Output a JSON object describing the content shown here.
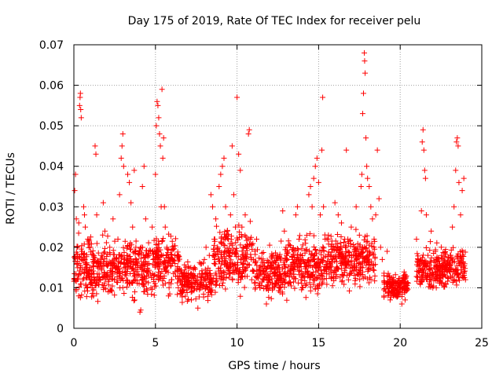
{
  "chart_data": {
    "type": "scatter",
    "title": "Day 175 of 2019, Rate Of TEC Index for receiver pelu",
    "xlabel": "GPS time / hours",
    "ylabel": "ROTI / TECUs",
    "xlim": [
      0,
      25
    ],
    "ylim": [
      0,
      0.07
    ],
    "x_ticks": [
      0,
      5,
      10,
      15,
      20,
      25
    ],
    "x_tick_labels": [
      "0",
      "5",
      "10",
      "15",
      "20",
      "25"
    ],
    "y_ticks": [
      0,
      0.01,
      0.02,
      0.03,
      0.04,
      0.05,
      0.06,
      0.07
    ],
    "y_tick_labels": [
      "0",
      "0.01",
      "0.02",
      "0.03",
      "0.04",
      "0.05",
      "0.06",
      "0.07"
    ],
    "grid": true,
    "marker": "+",
    "color": "#ff0000",
    "series": [
      {
        "name": "ROTI",
        "points": [
          [
            0.05,
            0.034
          ],
          [
            0.1,
            0.038
          ],
          [
            0.15,
            0.027
          ],
          [
            0.2,
            0.02
          ],
          [
            0.25,
            0.013
          ],
          [
            0.3,
            0.008
          ],
          [
            0.3,
            0.026
          ],
          [
            0.35,
            0.055
          ],
          [
            0.38,
            0.057
          ],
          [
            0.4,
            0.058
          ],
          [
            0.42,
            0.054
          ],
          [
            0.45,
            0.052
          ],
          [
            0.5,
            0.019
          ],
          [
            0.55,
            0.012
          ],
          [
            0.6,
            0.03
          ],
          [
            0.65,
            0.028
          ],
          [
            0.7,
            0.025
          ],
          [
            0.75,
            0.015
          ],
          [
            0.8,
            0.01
          ],
          [
            0.85,
            0.022
          ],
          [
            0.9,
            0.014
          ],
          [
            1.0,
            0.02
          ],
          [
            1.1,
            0.011
          ],
          [
            1.2,
            0.008
          ],
          [
            1.3,
            0.045
          ],
          [
            1.35,
            0.043
          ],
          [
            1.4,
            0.028
          ],
          [
            1.5,
            0.016
          ],
          [
            1.6,
            0.012
          ],
          [
            1.7,
            0.018
          ],
          [
            1.8,
            0.031
          ],
          [
            1.9,
            0.024
          ],
          [
            2.0,
            0.013
          ],
          [
            2.1,
            0.009
          ],
          [
            2.2,
            0.02
          ],
          [
            2.3,
            0.016
          ],
          [
            2.4,
            0.027
          ],
          [
            2.5,
            0.012
          ],
          [
            2.6,
            0.015
          ],
          [
            2.7,
            0.022
          ],
          [
            2.8,
            0.033
          ],
          [
            2.9,
            0.042
          ],
          [
            2.95,
            0.045
          ],
          [
            3.0,
            0.048
          ],
          [
            3.05,
            0.04
          ],
          [
            3.1,
            0.017
          ],
          [
            3.2,
            0.013
          ],
          [
            3.3,
            0.038
          ],
          [
            3.4,
            0.036
          ],
          [
            3.5,
            0.031
          ],
          [
            3.6,
            0.025
          ],
          [
            3.7,
            0.039
          ],
          [
            3.8,
            0.02
          ],
          [
            3.9,
            0.014
          ],
          [
            4.0,
            0.011
          ],
          [
            4.05,
            0.004
          ],
          [
            4.1,
            0.0045
          ],
          [
            4.2,
            0.035
          ],
          [
            4.3,
            0.04
          ],
          [
            4.4,
            0.027
          ],
          [
            4.5,
            0.018
          ],
          [
            4.6,
            0.016
          ],
          [
            4.7,
            0.019
          ],
          [
            4.8,
            0.025
          ],
          [
            4.9,
            0.013
          ],
          [
            5.0,
            0.038
          ],
          [
            5.05,
            0.05
          ],
          [
            5.1,
            0.056
          ],
          [
            5.15,
            0.055
          ],
          [
            5.2,
            0.052
          ],
          [
            5.25,
            0.048
          ],
          [
            5.3,
            0.045
          ],
          [
            5.35,
            0.03
          ],
          [
            5.4,
            0.059
          ],
          [
            5.45,
            0.042
          ],
          [
            5.5,
            0.047
          ],
          [
            5.55,
            0.03
          ],
          [
            5.6,
            0.025
          ],
          [
            5.7,
            0.02
          ],
          [
            5.8,
            0.008
          ],
          [
            6.0,
            0.012
          ],
          [
            6.2,
            0.016
          ],
          [
            6.4,
            0.01
          ],
          [
            6.6,
            0.009
          ],
          [
            6.8,
            0.013
          ],
          [
            7.0,
            0.011
          ],
          [
            7.2,
            0.007
          ],
          [
            7.4,
            0.015
          ],
          [
            7.6,
            0.005
          ],
          [
            7.8,
            0.012
          ],
          [
            8.0,
            0.017
          ],
          [
            8.1,
            0.02
          ],
          [
            8.2,
            0.013
          ],
          [
            8.3,
            0.018
          ],
          [
            8.4,
            0.033
          ],
          [
            8.5,
            0.03
          ],
          [
            8.6,
            0.022
          ],
          [
            8.7,
            0.027
          ],
          [
            8.8,
            0.019
          ],
          [
            8.9,
            0.035
          ],
          [
            9.0,
            0.038
          ],
          [
            9.1,
            0.04
          ],
          [
            9.2,
            0.042
          ],
          [
            9.3,
            0.03
          ],
          [
            9.4,
            0.024
          ],
          [
            9.5,
            0.018
          ],
          [
            9.6,
            0.028
          ],
          [
            9.7,
            0.045
          ],
          [
            9.8,
            0.033
          ],
          [
            9.9,
            0.025
          ],
          [
            10.0,
            0.057
          ],
          [
            10.1,
            0.043
          ],
          [
            10.2,
            0.039
          ],
          [
            10.3,
            0.025
          ],
          [
            10.4,
            0.02
          ],
          [
            10.5,
            0.028
          ],
          [
            10.6,
            0.015
          ],
          [
            10.7,
            0.048
          ],
          [
            10.75,
            0.049
          ],
          [
            10.8,
            0.022
          ],
          [
            10.9,
            0.012
          ],
          [
            11.0,
            0.017
          ],
          [
            11.2,
            0.022
          ],
          [
            11.4,
            0.01
          ],
          [
            11.6,
            0.014
          ],
          [
            11.8,
            0.006
          ],
          [
            12.0,
            0.012
          ],
          [
            12.2,
            0.018
          ],
          [
            12.4,
            0.011
          ],
          [
            12.6,
            0.015
          ],
          [
            12.8,
            0.029
          ],
          [
            12.9,
            0.024
          ],
          [
            13.0,
            0.02
          ],
          [
            13.2,
            0.013
          ],
          [
            13.4,
            0.017
          ],
          [
            13.6,
            0.028
          ],
          [
            13.7,
            0.03
          ],
          [
            13.8,
            0.022
          ],
          [
            13.9,
            0.016
          ],
          [
            14.0,
            0.01
          ],
          [
            14.2,
            0.021
          ],
          [
            14.4,
            0.033
          ],
          [
            14.5,
            0.035
          ],
          [
            14.6,
            0.03
          ],
          [
            14.7,
            0.037
          ],
          [
            14.8,
            0.04
          ],
          [
            14.9,
            0.042
          ],
          [
            15.0,
            0.036
          ],
          [
            15.1,
            0.028
          ],
          [
            15.2,
            0.044
          ],
          [
            15.25,
            0.057
          ],
          [
            15.3,
            0.03
          ],
          [
            15.4,
            0.022
          ],
          [
            15.5,
            0.015
          ],
          [
            15.6,
            0.023
          ],
          [
            15.8,
            0.017
          ],
          [
            16.0,
            0.031
          ],
          [
            16.2,
            0.028
          ],
          [
            16.4,
            0.026
          ],
          [
            16.6,
            0.022
          ],
          [
            16.7,
            0.044
          ],
          [
            16.8,
            0.019
          ],
          [
            17.0,
            0.025
          ],
          [
            17.1,
            0.015
          ],
          [
            17.2,
            0.02
          ],
          [
            17.3,
            0.03
          ],
          [
            17.4,
            0.018
          ],
          [
            17.5,
            0.023
          ],
          [
            17.6,
            0.035
          ],
          [
            17.65,
            0.038
          ],
          [
            17.7,
            0.053
          ],
          [
            17.75,
            0.058
          ],
          [
            17.8,
            0.068
          ],
          [
            17.82,
            0.066
          ],
          [
            17.85,
            0.063
          ],
          [
            17.9,
            0.047
          ],
          [
            17.95,
            0.04
          ],
          [
            18.0,
            0.037
          ],
          [
            18.1,
            0.035
          ],
          [
            18.2,
            0.03
          ],
          [
            18.3,
            0.027
          ],
          [
            18.4,
            0.022
          ],
          [
            18.5,
            0.028
          ],
          [
            18.6,
            0.044
          ],
          [
            18.7,
            0.032
          ],
          [
            18.8,
            0.02
          ],
          [
            18.9,
            0.017
          ],
          [
            19.0,
            0.013
          ],
          [
            19.2,
            0.019
          ],
          [
            19.4,
            0.012
          ],
          [
            19.6,
            0.008
          ],
          [
            19.8,
            0.011
          ],
          [
            20.0,
            0.009
          ],
          [
            20.1,
            0.006
          ],
          [
            20.2,
            0.013
          ],
          [
            20.3,
            0.007
          ],
          [
            20.4,
            0.01
          ],
          [
            21.0,
            0.022
          ],
          [
            21.1,
            0.017
          ],
          [
            21.2,
            0.012
          ],
          [
            21.3,
            0.029
          ],
          [
            21.35,
            0.046
          ],
          [
            21.4,
            0.049
          ],
          [
            21.45,
            0.044
          ],
          [
            21.5,
            0.039
          ],
          [
            21.55,
            0.037
          ],
          [
            21.6,
            0.028
          ],
          [
            21.7,
            0.018
          ],
          [
            21.8,
            0.013
          ],
          [
            21.9,
            0.024
          ],
          [
            22.0,
            0.01
          ],
          [
            22.2,
            0.017
          ],
          [
            22.4,
            0.012
          ],
          [
            22.6,
            0.014
          ],
          [
            22.8,
            0.011
          ],
          [
            23.0,
            0.015
          ],
          [
            23.1,
            0.018
          ],
          [
            23.2,
            0.025
          ],
          [
            23.3,
            0.03
          ],
          [
            23.4,
            0.039
          ],
          [
            23.45,
            0.046
          ],
          [
            23.5,
            0.047
          ],
          [
            23.55,
            0.045
          ],
          [
            23.6,
            0.036
          ],
          [
            23.7,
            0.028
          ],
          [
            23.8,
            0.034
          ],
          [
            23.9,
            0.037
          ],
          [
            24.0,
            0.012
          ]
        ],
        "bands": [
          {
            "from": 0.0,
            "to": 1.0,
            "min": 0.004,
            "max": 0.026
          },
          {
            "from": 1.0,
            "to": 3.0,
            "min": 0.005,
            "max": 0.024
          },
          {
            "from": 3.0,
            "to": 5.0,
            "min": 0.005,
            "max": 0.025
          },
          {
            "from": 5.0,
            "to": 6.5,
            "min": 0.007,
            "max": 0.026
          },
          {
            "from": 6.5,
            "to": 8.5,
            "min": 0.005,
            "max": 0.018
          },
          {
            "from": 8.5,
            "to": 11.0,
            "min": 0.007,
            "max": 0.028
          },
          {
            "from": 11.0,
            "to": 13.0,
            "min": 0.005,
            "max": 0.022
          },
          {
            "from": 13.0,
            "to": 15.5,
            "min": 0.006,
            "max": 0.025
          },
          {
            "from": 15.5,
            "to": 18.5,
            "min": 0.008,
            "max": 0.026
          },
          {
            "from": 19.0,
            "to": 20.5,
            "min": 0.006,
            "max": 0.015
          },
          {
            "from": 21.0,
            "to": 22.5,
            "min": 0.007,
            "max": 0.022
          },
          {
            "from": 22.5,
            "to": 24.0,
            "min": 0.008,
            "max": 0.022
          }
        ]
      }
    ]
  }
}
